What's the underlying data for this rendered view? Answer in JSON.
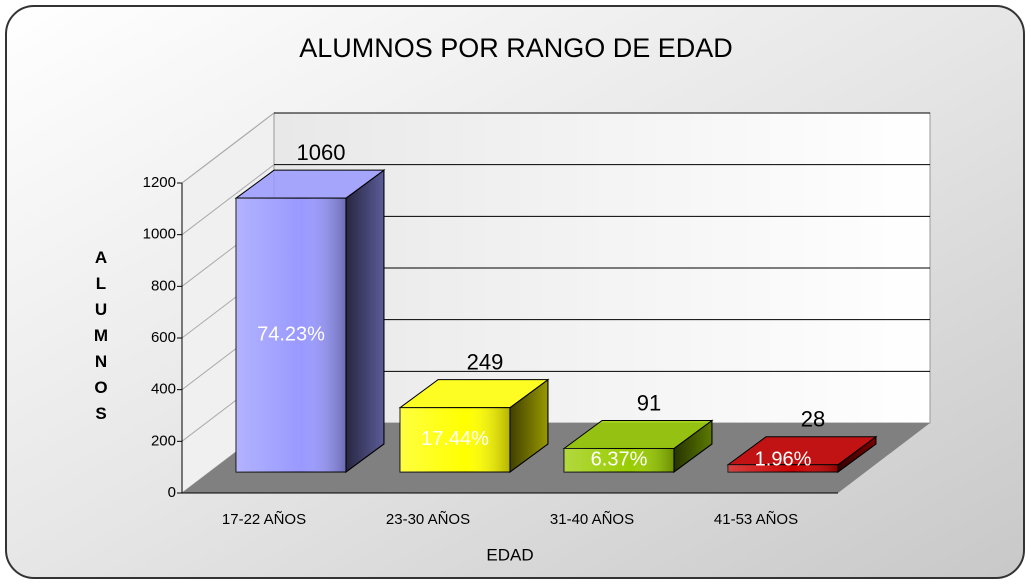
{
  "chart_data": {
    "type": "bar3d",
    "title": "ALUMNOS POR RANGO DE EDAD",
    "categories": [
      "17-22 AÑOS",
      "23-30 AÑOS",
      "31-40 AÑOS",
      "41-53 AÑOS"
    ],
    "values": [
      1060,
      249,
      91,
      28
    ],
    "percentages": [
      74.23,
      17.44,
      6.37,
      1.96
    ],
    "percentage_labels": [
      "74.23%",
      "17.44%",
      "6.37%",
      "1.96%"
    ],
    "colors": [
      "#9999ff",
      "#ffff00",
      "#99cc00",
      "#cc0000"
    ],
    "ylim": [
      0,
      1200
    ],
    "yticks": [
      0,
      200,
      400,
      600,
      800,
      1000,
      1200
    ],
    "ylabel": "ALUMNOS",
    "xlabel": "EDAD",
    "grid": true
  }
}
